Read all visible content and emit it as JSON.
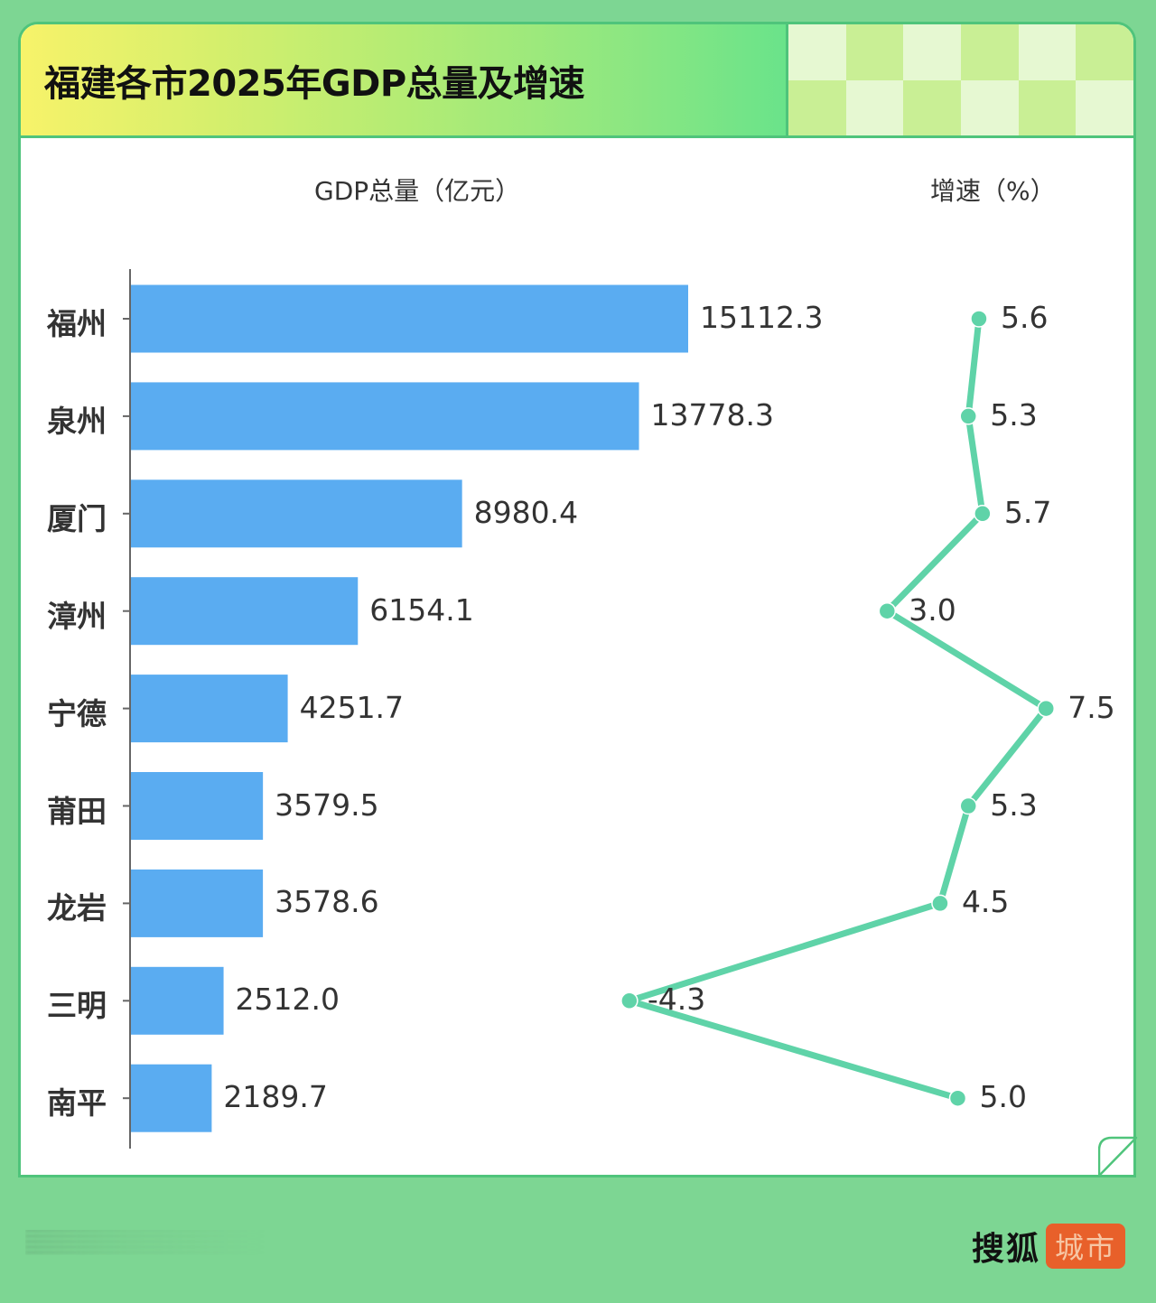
{
  "header": {
    "title": "福建各市2025年GDP总量及增速"
  },
  "columns": {
    "gdp_label": "GDP总量（亿元）",
    "growth_label": "增速（%）"
  },
  "colors": {
    "background": "#7dd693",
    "card_border": "#4fc47b",
    "bar": "#5aacf1",
    "line": "#5fd3a8",
    "text": "#333333",
    "badge": "#e8602a"
  },
  "footer": {
    "brand": "搜狐",
    "badge": "城市"
  },
  "chart_data": [
    {
      "type": "bar",
      "orientation": "horizontal",
      "title": "GDP总量（亿元）",
      "categories": [
        "福州",
        "泉州",
        "厦门",
        "漳州",
        "宁德",
        "莆田",
        "龙岩",
        "三明",
        "南平"
      ],
      "values": [
        15112.3,
        13778.3,
        8980.4,
        6154.1,
        4251.7,
        3579.5,
        3578.6,
        2512.0,
        2189.7
      ],
      "value_labels": [
        "15112.3",
        "13778.3",
        "8980.4",
        "6154.1",
        "4251.7",
        "3579.5",
        "3578.6",
        "2512.0",
        "2189.7"
      ],
      "xlabel": "",
      "ylabel": "",
      "grid": false
    },
    {
      "type": "line",
      "orientation": "vertical",
      "title": "增速（%）",
      "categories": [
        "福州",
        "泉州",
        "厦门",
        "漳州",
        "宁德",
        "莆田",
        "龙岩",
        "三明",
        "南平"
      ],
      "values": [
        5.6,
        5.3,
        5.7,
        3.0,
        7.5,
        5.3,
        4.5,
        -4.3,
        5.0
      ],
      "value_labels": [
        "5.6",
        "5.3",
        "5.7",
        "3.0",
        "7.5",
        "5.3",
        "4.5",
        "-4.3",
        "5.0"
      ],
      "grid": false
    }
  ]
}
